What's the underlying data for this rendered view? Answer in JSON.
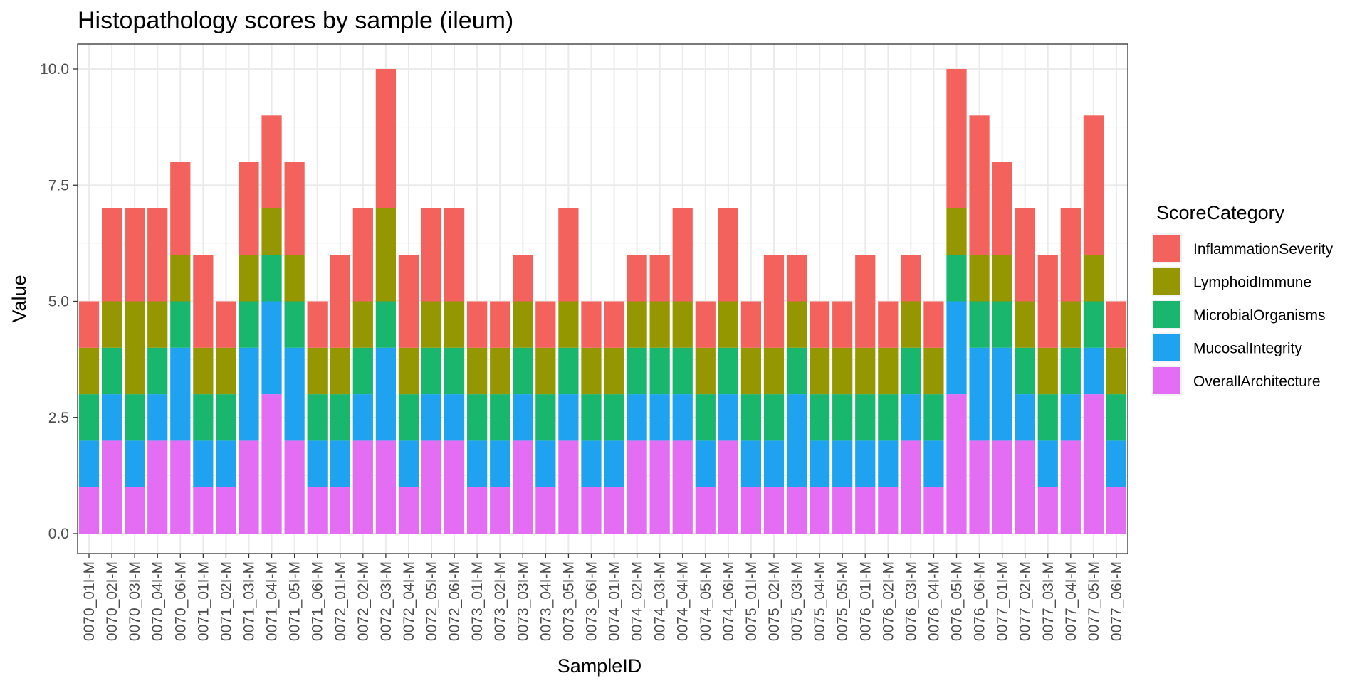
{
  "chart_data": {
    "type": "bar",
    "stacked": true,
    "title": "Histopathology scores by sample (ileum)",
    "xlabel": "SampleID",
    "ylabel": "Value",
    "ylim": [
      0,
      10.5
    ],
    "yticks": [
      "0.0",
      "2.5",
      "5.0",
      "7.5",
      "10.0"
    ],
    "ytick_values": [
      0,
      2.5,
      5,
      7.5,
      10
    ],
    "grid": true,
    "legend_title": "ScoreCategory",
    "legend_position": "right",
    "categories": [
      "0070_01I-M",
      "0070_02I-M",
      "0070_03I-M",
      "0070_04I-M",
      "0070_06I-M",
      "0071_01I-M",
      "0071_02I-M",
      "0071_03I-M",
      "0071_04I-M",
      "0071_05I-M",
      "0071_06I-M",
      "0072_01I-M",
      "0072_02I-M",
      "0072_03I-M",
      "0072_04I-M",
      "0072_05I-M",
      "0072_06I-M",
      "0073_01I-M",
      "0073_02I-M",
      "0073_03I-M",
      "0073_04I-M",
      "0073_05I-M",
      "0073_06I-M",
      "0074_01I-M",
      "0074_02I-M",
      "0074_03I-M",
      "0074_04I-M",
      "0074_05I-M",
      "0074_06I-M",
      "0075_01I-M",
      "0075_02I-M",
      "0075_03I-M",
      "0075_04I-M",
      "0075_05I-M",
      "0076_01I-M",
      "0076_02I-M",
      "0076_03I-M",
      "0076_04I-M",
      "0076_05I-M",
      "0076_06I-M",
      "0077_01I-M",
      "0077_02I-M",
      "0077_03I-M",
      "0077_04I-M",
      "0077_05I-M",
      "0077_06I-M"
    ],
    "series": [
      {
        "name": "OverallArchitecture",
        "color": "#E46EF3",
        "values": [
          1,
          2,
          1,
          2,
          2,
          1,
          1,
          2,
          3,
          2,
          1,
          1,
          2,
          2,
          1,
          2,
          2,
          1,
          1,
          2,
          1,
          2,
          1,
          1,
          2,
          2,
          2,
          1,
          2,
          1,
          1,
          1,
          1,
          1,
          1,
          1,
          2,
          1,
          3,
          2,
          2,
          2,
          1,
          2,
          3,
          1
        ]
      },
      {
        "name": "MucosalIntegrity",
        "color": "#1FA3F0",
        "values": [
          1,
          1,
          1,
          1,
          2,
          1,
          1,
          2,
          2,
          2,
          1,
          1,
          1,
          2,
          1,
          1,
          1,
          1,
          1,
          1,
          1,
          1,
          1,
          1,
          1,
          1,
          1,
          1,
          1,
          1,
          1,
          2,
          1,
          1,
          1,
          1,
          1,
          1,
          2,
          2,
          2,
          1,
          1,
          1,
          1,
          1
        ]
      },
      {
        "name": "MicrobialOrganisms",
        "color": "#19B66E",
        "values": [
          1,
          1,
          1,
          1,
          1,
          1,
          1,
          1,
          1,
          1,
          1,
          1,
          1,
          1,
          1,
          1,
          1,
          1,
          1,
          1,
          1,
          1,
          1,
          1,
          1,
          1,
          1,
          1,
          1,
          1,
          1,
          1,
          1,
          1,
          1,
          1,
          1,
          1,
          1,
          1,
          1,
          1,
          1,
          1,
          1,
          1
        ]
      },
      {
        "name": "LymphoidImmune",
        "color": "#949700",
        "values": [
          1,
          1,
          2,
          1,
          1,
          1,
          1,
          1,
          1,
          1,
          1,
          1,
          1,
          2,
          1,
          1,
          1,
          1,
          1,
          1,
          1,
          1,
          1,
          1,
          1,
          1,
          1,
          1,
          1,
          1,
          1,
          1,
          1,
          1,
          1,
          1,
          1,
          1,
          1,
          1,
          1,
          1,
          1,
          1,
          1,
          1
        ]
      },
      {
        "name": "InflammationSeverity",
        "color": "#F3625C",
        "values": [
          1,
          2,
          2,
          2,
          2,
          2,
          1,
          2,
          2,
          2,
          1,
          2,
          2,
          3,
          2,
          2,
          2,
          1,
          1,
          1,
          1,
          2,
          1,
          1,
          1,
          1,
          2,
          1,
          2,
          1,
          2,
          1,
          1,
          1,
          2,
          1,
          1,
          1,
          3,
          3,
          2,
          2,
          2,
          2,
          3,
          1
        ]
      }
    ],
    "legend_order": [
      "InflammationSeverity",
      "LymphoidImmune",
      "MicrobialOrganisms",
      "MucosalIntegrity",
      "OverallArchitecture"
    ]
  }
}
